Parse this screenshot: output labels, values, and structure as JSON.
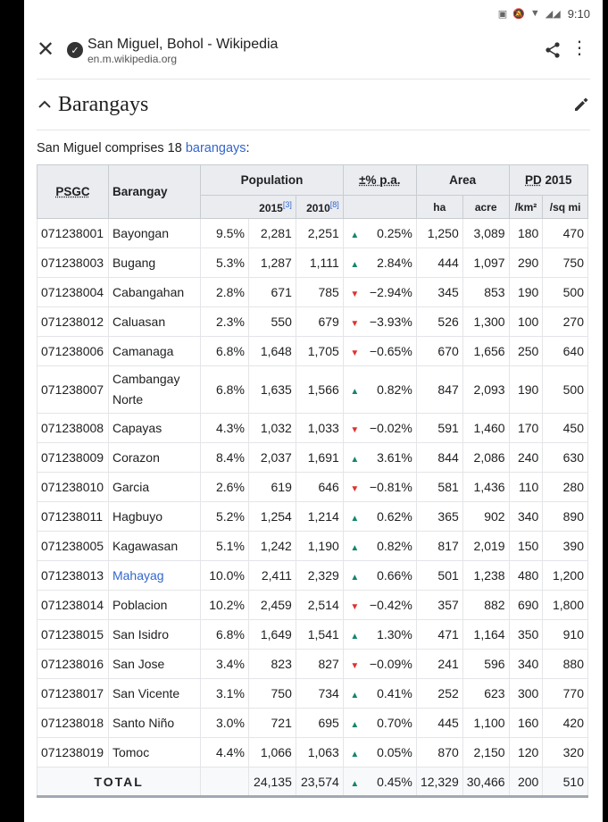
{
  "status": {
    "time": "9:10"
  },
  "browser": {
    "title": "San Miguel, Bohol - Wikipedia",
    "url": "en.m.wikipedia.org"
  },
  "section": {
    "title": "Barangays"
  },
  "intro": {
    "text_before": "San Miguel comprises 18 ",
    "link": "barangays",
    "text_after": ":"
  },
  "table": {
    "headers": {
      "psgc": "PSGC",
      "barangay": "Barangay",
      "population": "Population",
      "pop_2015": "2015",
      "pop_2015_ref": "[3]",
      "pop_2010": "2010",
      "pop_2010_ref": "[8]",
      "change": "±% p.a.",
      "area": "Area",
      "area_ha": "ha",
      "area_acre": "acre",
      "pd": "PD",
      "pd_year": " 2015",
      "pd_km": "/km²",
      "pd_sqmi": "/sq mi"
    },
    "rows": [
      {
        "psgc": "071238001",
        "name": "Bayongan",
        "share": "9.5%",
        "p2015": "2,281",
        "p2010": "2,251",
        "trend": "up",
        "change": "0.25%",
        "ha": "1,250",
        "acre": "3,089",
        "pdkm": "180",
        "pdmi": "470"
      },
      {
        "psgc": "071238003",
        "name": "Bugang",
        "share": "5.3%",
        "p2015": "1,287",
        "p2010": "1,111",
        "trend": "up",
        "change": "2.84%",
        "ha": "444",
        "acre": "1,097",
        "pdkm": "290",
        "pdmi": "750"
      },
      {
        "psgc": "071238004",
        "name": "Cabangahan",
        "share": "2.8%",
        "p2015": "671",
        "p2010": "785",
        "trend": "down",
        "change": "−2.94%",
        "ha": "345",
        "acre": "853",
        "pdkm": "190",
        "pdmi": "500"
      },
      {
        "psgc": "071238012",
        "name": "Caluasan",
        "share": "2.3%",
        "p2015": "550",
        "p2010": "679",
        "trend": "down",
        "change": "−3.93%",
        "ha": "526",
        "acre": "1,300",
        "pdkm": "100",
        "pdmi": "270"
      },
      {
        "psgc": "071238006",
        "name": "Camanaga",
        "share": "6.8%",
        "p2015": "1,648",
        "p2010": "1,705",
        "trend": "down",
        "change": "−0.65%",
        "ha": "670",
        "acre": "1,656",
        "pdkm": "250",
        "pdmi": "640"
      },
      {
        "psgc": "071238007",
        "name": "Cambangay Norte",
        "share": "6.8%",
        "p2015": "1,635",
        "p2010": "1,566",
        "trend": "up",
        "change": "0.82%",
        "ha": "847",
        "acre": "2,093",
        "pdkm": "190",
        "pdmi": "500"
      },
      {
        "psgc": "071238008",
        "name": "Capayas",
        "share": "4.3%",
        "p2015": "1,032",
        "p2010": "1,033",
        "trend": "down",
        "change": "−0.02%",
        "ha": "591",
        "acre": "1,460",
        "pdkm": "170",
        "pdmi": "450"
      },
      {
        "psgc": "071238009",
        "name": "Corazon",
        "share": "8.4%",
        "p2015": "2,037",
        "p2010": "1,691",
        "trend": "up",
        "change": "3.61%",
        "ha": "844",
        "acre": "2,086",
        "pdkm": "240",
        "pdmi": "630"
      },
      {
        "psgc": "071238010",
        "name": "Garcia",
        "share": "2.6%",
        "p2015": "619",
        "p2010": "646",
        "trend": "down",
        "change": "−0.81%",
        "ha": "581",
        "acre": "1,436",
        "pdkm": "110",
        "pdmi": "280"
      },
      {
        "psgc": "071238011",
        "name": "Hagbuyo",
        "share": "5.2%",
        "p2015": "1,254",
        "p2010": "1,214",
        "trend": "up",
        "change": "0.62%",
        "ha": "365",
        "acre": "902",
        "pdkm": "340",
        "pdmi": "890"
      },
      {
        "psgc": "071238005",
        "name": "Kagawasan",
        "share": "5.1%",
        "p2015": "1,242",
        "p2010": "1,190",
        "trend": "up",
        "change": "0.82%",
        "ha": "817",
        "acre": "2,019",
        "pdkm": "150",
        "pdmi": "390"
      },
      {
        "psgc": "071238013",
        "name": "Mahayag",
        "link": true,
        "share": "10.0%",
        "p2015": "2,411",
        "p2010": "2,329",
        "trend": "up",
        "change": "0.66%",
        "ha": "501",
        "acre": "1,238",
        "pdkm": "480",
        "pdmi": "1,200"
      },
      {
        "psgc": "071238014",
        "name": "Poblacion",
        "share": "10.2%",
        "p2015": "2,459",
        "p2010": "2,514",
        "trend": "down",
        "change": "−0.42%",
        "ha": "357",
        "acre": "882",
        "pdkm": "690",
        "pdmi": "1,800"
      },
      {
        "psgc": "071238015",
        "name": "San Isidro",
        "share": "6.8%",
        "p2015": "1,649",
        "p2010": "1,541",
        "trend": "up",
        "change": "1.30%",
        "ha": "471",
        "acre": "1,164",
        "pdkm": "350",
        "pdmi": "910"
      },
      {
        "psgc": "071238016",
        "name": "San Jose",
        "share": "3.4%",
        "p2015": "823",
        "p2010": "827",
        "trend": "down",
        "change": "−0.09%",
        "ha": "241",
        "acre": "596",
        "pdkm": "340",
        "pdmi": "880"
      },
      {
        "psgc": "071238017",
        "name": "San Vicente",
        "share": "3.1%",
        "p2015": "750",
        "p2010": "734",
        "trend": "up",
        "change": "0.41%",
        "ha": "252",
        "acre": "623",
        "pdkm": "300",
        "pdmi": "770"
      },
      {
        "psgc": "071238018",
        "name": "Santo Niño",
        "share": "3.0%",
        "p2015": "721",
        "p2010": "695",
        "trend": "up",
        "change": "0.70%",
        "ha": "445",
        "acre": "1,100",
        "pdkm": "160",
        "pdmi": "420"
      },
      {
        "psgc": "071238019",
        "name": "Tomoc",
        "share": "4.4%",
        "p2015": "1,066",
        "p2010": "1,063",
        "trend": "up",
        "change": "0.05%",
        "ha": "870",
        "acre": "2,150",
        "pdkm": "120",
        "pdmi": "320"
      }
    ],
    "total": {
      "label": "TOTAL",
      "p2015": "24,135",
      "p2010": "23,574",
      "trend": "up",
      "change": "0.45%",
      "ha": "12,329",
      "acre": "30,466",
      "pdkm": "200",
      "pdmi": "510"
    }
  },
  "colors": {
    "link": "#3366cc",
    "up": "#14866d",
    "down": "#dd3333",
    "header_bg": "#eaecf0"
  }
}
